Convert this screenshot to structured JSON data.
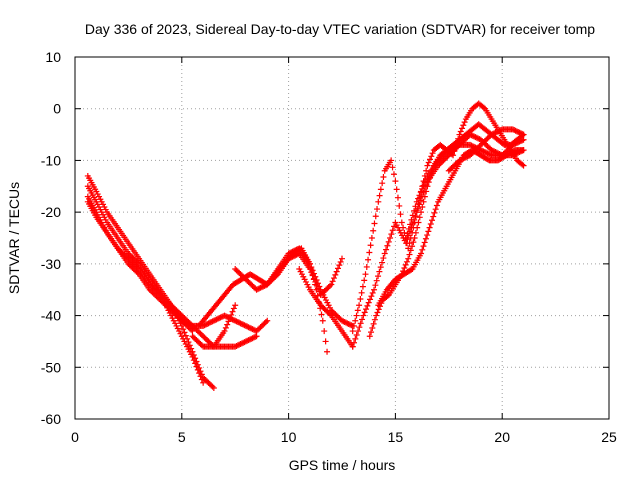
{
  "chart_data": {
    "type": "scatter",
    "title": "Day 336 of 2023, Sidereal Day-to-day VTEC variation (SDTVAR) for receiver tomp",
    "xlabel": "GPS time / hours",
    "ylabel": "SDTVAR / TECUs",
    "xlim": [
      0,
      25
    ],
    "ylim": [
      -60,
      10
    ],
    "xticks": [
      "0",
      "5",
      "10",
      "15",
      "20",
      "25"
    ],
    "yticks": [
      "10",
      "0",
      "-10",
      "-20",
      "-30",
      "-40",
      "-50",
      "-60"
    ],
    "grid": true,
    "marker": "+",
    "color": "#ff0000",
    "series": [
      {
        "x": [
          0.6,
          1.0,
          1.5,
          2.0,
          2.5,
          3.0,
          3.5,
          4.0,
          4.5,
          5.0,
          5.5,
          6.0,
          6.5
        ],
        "y": [
          -13,
          -16,
          -20,
          -23,
          -26,
          -29,
          -32,
          -35,
          -38,
          -42,
          -47,
          -52,
          -54
        ]
      },
      {
        "x": [
          0.6,
          1.0,
          1.5,
          2.0,
          2.5,
          3.0,
          3.5,
          4.0,
          4.5,
          5.0,
          5.5,
          6.0
        ],
        "y": [
          -15,
          -18,
          -22,
          -25,
          -28,
          -30,
          -33,
          -36,
          -40,
          -44,
          -48,
          -53
        ]
      },
      {
        "x": [
          0.6,
          1.0,
          1.5,
          2.0,
          2.5,
          3.0,
          3.5,
          4.0,
          4.5,
          5.0,
          5.5,
          6.0,
          6.5,
          7.0,
          7.5
        ],
        "y": [
          -17,
          -20,
          -24,
          -27,
          -29,
          -31,
          -34,
          -36,
          -38,
          -40,
          -42,
          -44,
          -46,
          -43,
          -38
        ]
      },
      {
        "x": [
          0.6,
          1.0,
          1.5,
          2.0,
          2.5,
          3.0,
          3.5,
          4.0,
          4.5,
          5.0,
          5.5
        ],
        "y": [
          -18,
          -21,
          -24,
          -27,
          -30,
          -32,
          -35,
          -37,
          -39,
          -41,
          -43
        ]
      },
      {
        "x": [
          4.5,
          5.0,
          5.5,
          6.0,
          6.5,
          7.0,
          7.5,
          8.0,
          8.5,
          9.0
        ],
        "y": [
          -38,
          -41,
          -42,
          -42,
          -41,
          -40,
          -41,
          -42,
          -43,
          -41
        ]
      },
      {
        "x": [
          5.5,
          6.0,
          6.5,
          7.0,
          7.5,
          8.0,
          8.5
        ],
        "y": [
          -44,
          -46,
          -46,
          -46,
          -46,
          -45,
          -44
        ]
      },
      {
        "x": [
          5.8,
          6.2,
          6.6,
          7.0,
          7.4,
          7.8,
          8.2,
          8.6,
          9.0,
          9.4,
          9.8,
          10.2,
          10.6,
          11.0,
          11.3,
          11.6,
          11.8
        ],
        "y": [
          -42,
          -40,
          -38,
          -36,
          -34,
          -33,
          -32,
          -33,
          -34,
          -32,
          -30,
          -28,
          -27,
          -30,
          -35,
          -41,
          -47
        ]
      },
      {
        "x": [
          7.5,
          8.0,
          8.5,
          9.0,
          9.5,
          10.0,
          10.5,
          11.0,
          11.5,
          12.0,
          12.5,
          13.0
        ],
        "y": [
          -31,
          -33,
          -35,
          -34,
          -31,
          -28,
          -27,
          -30,
          -35,
          -39,
          -41,
          -42
        ]
      },
      {
        "x": [
          9.0,
          9.5,
          10.0,
          10.5,
          11.0,
          11.5,
          12.0,
          12.5
        ],
        "y": [
          -34,
          -32,
          -29,
          -28,
          -31,
          -36,
          -34,
          -29
        ]
      },
      {
        "x": [
          10.5,
          11.0,
          11.5,
          12.0,
          12.5,
          13.0
        ],
        "y": [
          -31,
          -35,
          -38,
          -40,
          -43,
          -46
        ]
      },
      {
        "x": [
          13.0,
          13.3,
          13.6,
          13.9,
          14.2,
          14.5,
          14.8,
          15.0,
          15.3,
          15.6,
          15.9,
          16.2,
          16.5,
          16.8,
          17.1,
          17.4,
          17.7,
          18.0,
          18.3,
          18.6,
          18.9,
          19.2,
          19.5,
          19.8,
          20.1,
          20.4,
          20.7,
          21.0
        ],
        "y": [
          -43,
          -38,
          -32,
          -25,
          -18,
          -12,
          -10,
          -14,
          -22,
          -27,
          -22,
          -16,
          -11,
          -8,
          -7,
          -8,
          -9,
          -5,
          -2,
          0,
          1,
          0,
          -2,
          -4,
          -6,
          -8,
          -10,
          -11
        ]
      },
      {
        "x": [
          13.0,
          13.5,
          14.0,
          14.5,
          15.0,
          15.5,
          16.0,
          16.5,
          17.0,
          17.5,
          18.0,
          18.5,
          19.0,
          19.5,
          20.0,
          20.5,
          21.0
        ],
        "y": [
          -46,
          -40,
          -35,
          -28,
          -22,
          -26,
          -20,
          -14,
          -11,
          -9,
          -7,
          -5,
          -6,
          -8,
          -9,
          -7,
          -6
        ]
      },
      {
        "x": [
          13.8,
          14.1,
          14.4,
          14.7,
          15.0,
          15.3,
          15.6,
          15.9,
          16.2,
          16.5,
          16.8,
          17.1,
          17.4,
          17.7,
          18.0,
          18.3,
          18.6,
          18.9,
          19.2,
          19.5,
          19.8,
          20.1,
          20.4,
          20.7,
          21.0
        ],
        "y": [
          -44,
          -40,
          -37,
          -36,
          -34,
          -32,
          -29,
          -25,
          -20,
          -15,
          -11,
          -9,
          -8,
          -7,
          -6,
          -5,
          -4,
          -3,
          -4,
          -5,
          -6,
          -7,
          -7,
          -6,
          -5
        ]
      },
      {
        "x": [
          14.2,
          14.6,
          15.0,
          15.4,
          15.8,
          16.2,
          16.6,
          17.0,
          17.4,
          17.8,
          18.2,
          18.6,
          19.0,
          19.4,
          19.8,
          20.2,
          20.6,
          21.0
        ],
        "y": [
          -38,
          -35,
          -33,
          -32,
          -31,
          -28,
          -23,
          -18,
          -15,
          -12,
          -9,
          -8,
          -9,
          -10,
          -10,
          -9,
          -8,
          -8
        ]
      },
      {
        "x": [
          15.5,
          16.0,
          16.5,
          17.0,
          17.5,
          18.0,
          18.5,
          19.0,
          19.5,
          20.0,
          20.5,
          21.0
        ],
        "y": [
          -25,
          -18,
          -13,
          -10,
          -8,
          -7,
          -7,
          -8,
          -9,
          -9,
          -9,
          -8
        ]
      },
      {
        "x": [
          17.5,
          18.0,
          18.5,
          19.0,
          19.5,
          20.0,
          20.5,
          21.0
        ],
        "y": [
          -12,
          -10,
          -9,
          -7,
          -5,
          -4,
          -4,
          -5
        ]
      }
    ]
  }
}
